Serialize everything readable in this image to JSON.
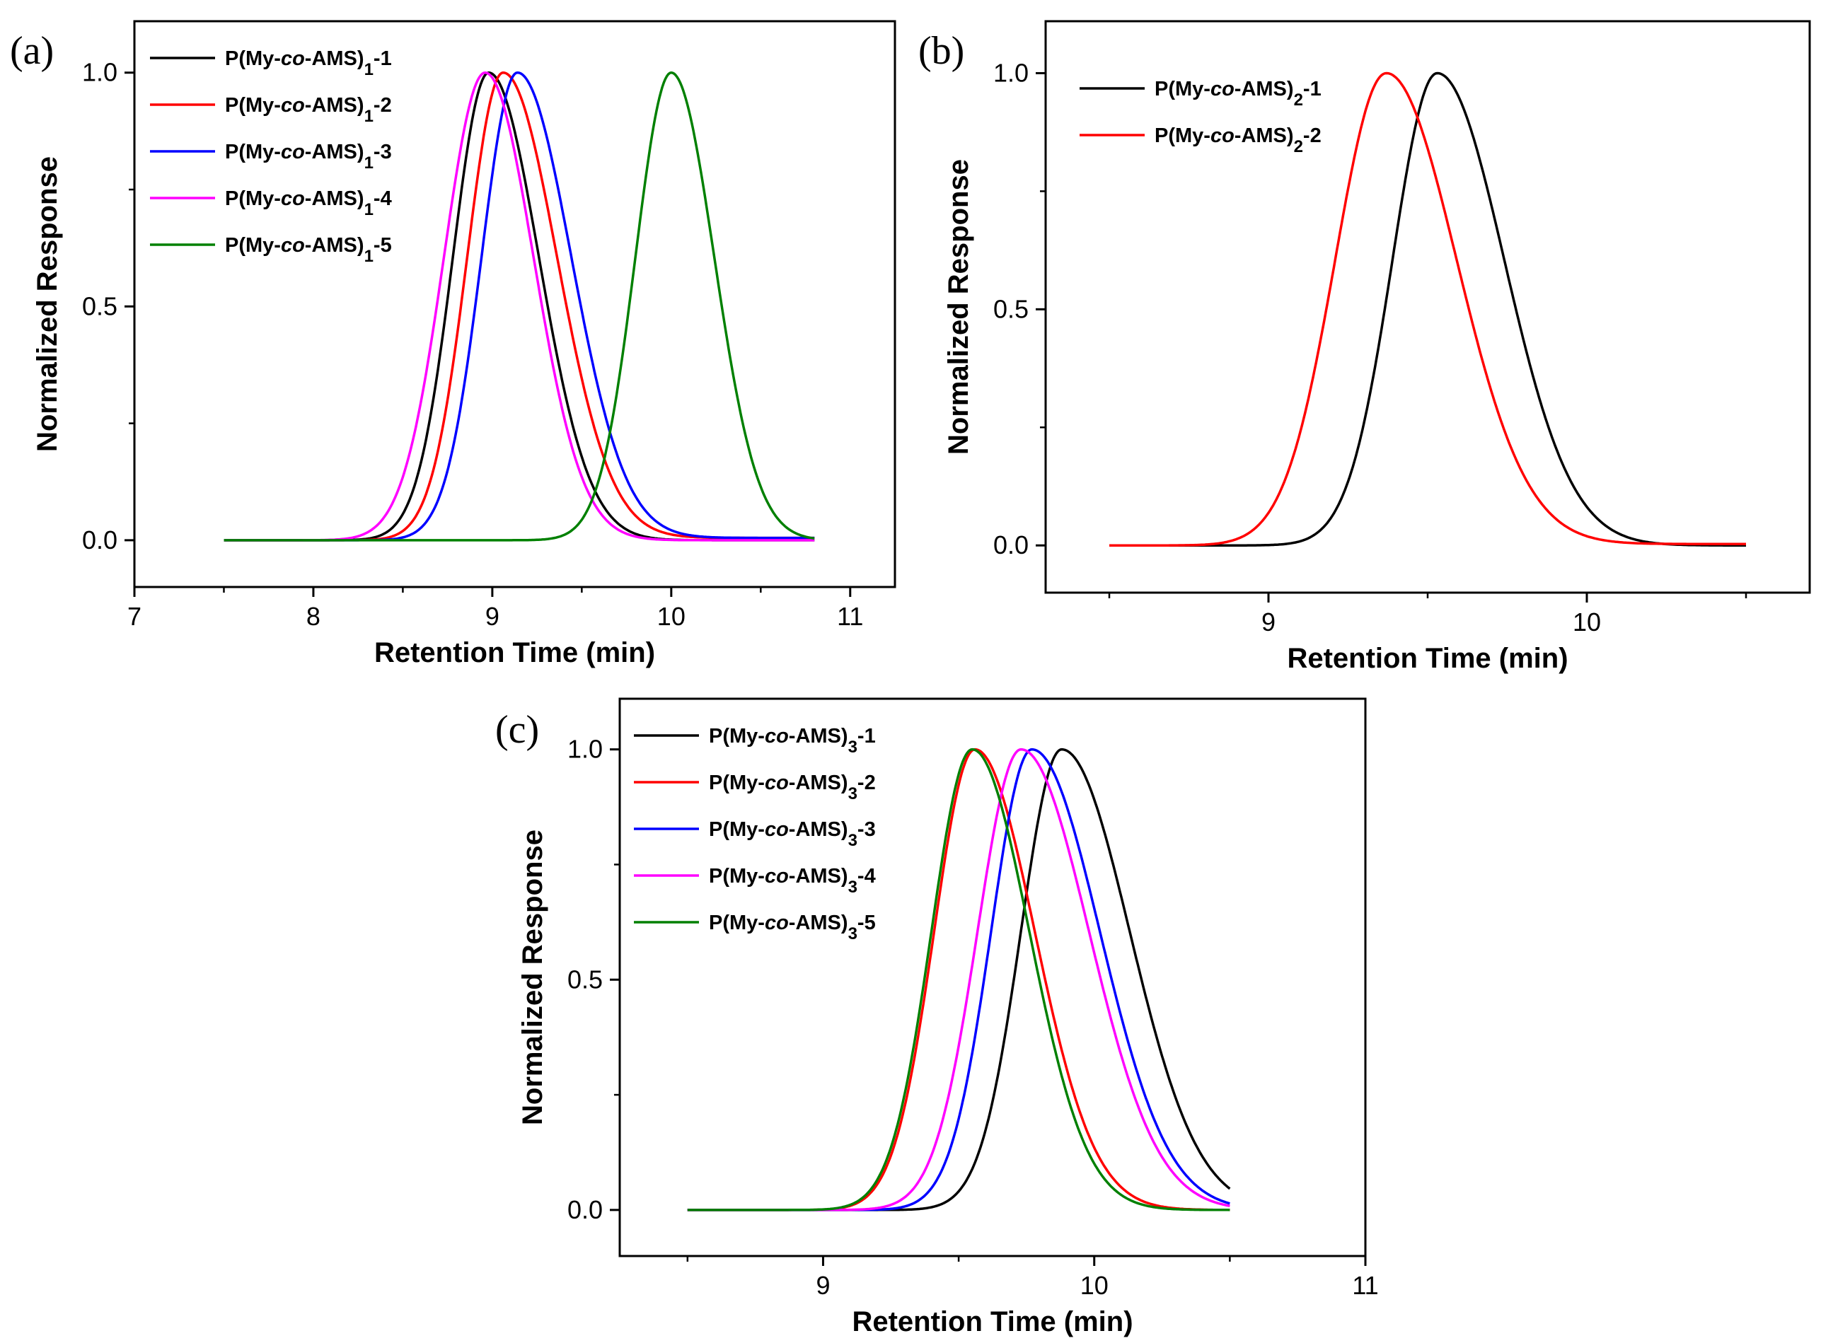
{
  "chart_data": [
    {
      "panel_label": "(a)",
      "type": "line",
      "xlabel": "Retention Time (min)",
      "ylabel": "Normalized Response",
      "xlim": [
        7,
        11.25
      ],
      "ylim": [
        -0.1,
        1.11
      ],
      "xticks": [
        7,
        8,
        9,
        10,
        11
      ],
      "xtick_labels": [
        "7",
        "8",
        "9",
        "10",
        "11"
      ],
      "yticks": [
        0.0,
        0.5,
        1.0
      ],
      "ytick_labels": [
        "0.0",
        "0.5",
        "1.0"
      ],
      "legend_position": "top-left",
      "x_range": [
        7.5,
        10.8
      ],
      "series": [
        {
          "name": "P(My-co-AMS)1-1",
          "label_prefix": "P(My-",
          "label_italic": "co",
          "label_mid": "-AMS)",
          "label_sub": "1",
          "label_suffix": "-1",
          "color": "#000000",
          "peak": 8.98,
          "left_sigma": 0.2,
          "right_sigma": 0.28,
          "tail": 0.0
        },
        {
          "name": "P(My-co-AMS)1-2",
          "label_prefix": "P(My-",
          "label_italic": "co",
          "label_mid": "-AMS)",
          "label_sub": "1",
          "label_suffix": "-2",
          "color": "#ff0000",
          "peak": 9.06,
          "left_sigma": 0.2,
          "right_sigma": 0.3,
          "tail": 0.005
        },
        {
          "name": "P(My-co-AMS)1-3",
          "label_prefix": "P(My-",
          "label_italic": "co",
          "label_mid": "-AMS)",
          "label_sub": "1",
          "label_suffix": "-3",
          "color": "#0000ff",
          "peak": 9.14,
          "left_sigma": 0.2,
          "right_sigma": 0.3,
          "tail": 0.005
        },
        {
          "name": "P(My-co-AMS)1-4",
          "label_prefix": "P(My-",
          "label_italic": "co",
          "label_mid": "-AMS)",
          "label_sub": "1",
          "label_suffix": "-4",
          "color": "#ff00ff",
          "peak": 8.96,
          "left_sigma": 0.23,
          "right_sigma": 0.27,
          "tail": 0.0
        },
        {
          "name": "P(My-co-AMS)1-5",
          "label_prefix": "P(My-",
          "label_italic": "co",
          "label_mid": "-AMS)",
          "label_sub": "1",
          "label_suffix": "-5",
          "color": "#008000",
          "peak": 10.0,
          "left_sigma": 0.2,
          "right_sigma": 0.24,
          "tail": 0.0
        }
      ]
    },
    {
      "panel_label": "(b)",
      "type": "line",
      "xlabel": "Retention Time (min)",
      "ylabel": "Normalized Response",
      "xlim": [
        8.3,
        10.7
      ],
      "ylim": [
        -0.1,
        1.11
      ],
      "xticks": [
        9,
        10
      ],
      "xtick_labels": [
        "9",
        "10"
      ],
      "yticks": [
        0.0,
        0.5,
        1.0
      ],
      "ytick_labels": [
        "0.0",
        "0.5",
        "1.0"
      ],
      "legend_position": "top-left",
      "x_range": [
        8.5,
        10.5
      ],
      "series": [
        {
          "name": "P(My-co-AMS)2-1",
          "label_prefix": "P(My-",
          "label_italic": "co",
          "label_mid": "-AMS)",
          "label_sub": "2",
          "label_suffix": "-1",
          "color": "#000000",
          "peak": 9.53,
          "left_sigma": 0.14,
          "right_sigma": 0.21,
          "tail": 0.0
        },
        {
          "name": "P(My-co-AMS)2-2",
          "label_prefix": "P(My-",
          "label_italic": "co",
          "label_mid": "-AMS)",
          "label_sub": "2",
          "label_suffix": "-2",
          "color": "#ff0000",
          "peak": 9.37,
          "left_sigma": 0.16,
          "right_sigma": 0.22,
          "tail": 0.003
        }
      ]
    },
    {
      "panel_label": "(c)",
      "type": "line",
      "xlabel": "Retention Time (min)",
      "ylabel": "Normalized Response",
      "xlim": [
        8.25,
        11
      ],
      "ylim": [
        -0.1,
        1.11
      ],
      "xticks": [
        9,
        10,
        11
      ],
      "xtick_labels": [
        "9",
        "10",
        "11"
      ],
      "yticks": [
        0.0,
        0.5,
        1.0
      ],
      "ytick_labels": [
        "0.0",
        "0.5",
        "1.0"
      ],
      "legend_position": "top-left",
      "x_range": [
        8.5,
        10.5
      ],
      "series": [
        {
          "name": "P(My-co-AMS)3-1",
          "label_prefix": "P(My-",
          "label_italic": "co",
          "label_mid": "-AMS)",
          "label_sub": "3",
          "label_suffix": "-1",
          "color": "#000000",
          "peak": 9.88,
          "left_sigma": 0.15,
          "right_sigma": 0.25,
          "tail": 0.0
        },
        {
          "name": "P(My-co-AMS)3-2",
          "label_prefix": "P(My-",
          "label_italic": "co",
          "label_mid": "-AMS)",
          "label_sub": "3",
          "label_suffix": "-2",
          "color": "#ff0000",
          "peak": 9.56,
          "left_sigma": 0.15,
          "right_sigma": 0.22,
          "tail": 0.0
        },
        {
          "name": "P(My-co-AMS)3-3",
          "label_prefix": "P(My-",
          "label_italic": "co",
          "label_mid": "-AMS)",
          "label_sub": "3",
          "label_suffix": "-3",
          "color": "#0000ff",
          "peak": 9.77,
          "left_sigma": 0.15,
          "right_sigma": 0.25,
          "tail": 0.0
        },
        {
          "name": "P(My-co-AMS)3-4",
          "label_prefix": "P(My-",
          "label_italic": "co",
          "label_mid": "-AMS)",
          "label_sub": "3",
          "label_suffix": "-4",
          "color": "#ff00ff",
          "peak": 9.73,
          "left_sigma": 0.16,
          "right_sigma": 0.25,
          "tail": 0.0
        },
        {
          "name": "P(My-co-AMS)3-5",
          "label_prefix": "P(My-",
          "label_italic": "co",
          "label_mid": "-AMS)",
          "label_sub": "3",
          "label_suffix": "-5",
          "color": "#008000",
          "peak": 9.55,
          "left_sigma": 0.15,
          "right_sigma": 0.21,
          "tail": 0.0
        }
      ]
    }
  ]
}
